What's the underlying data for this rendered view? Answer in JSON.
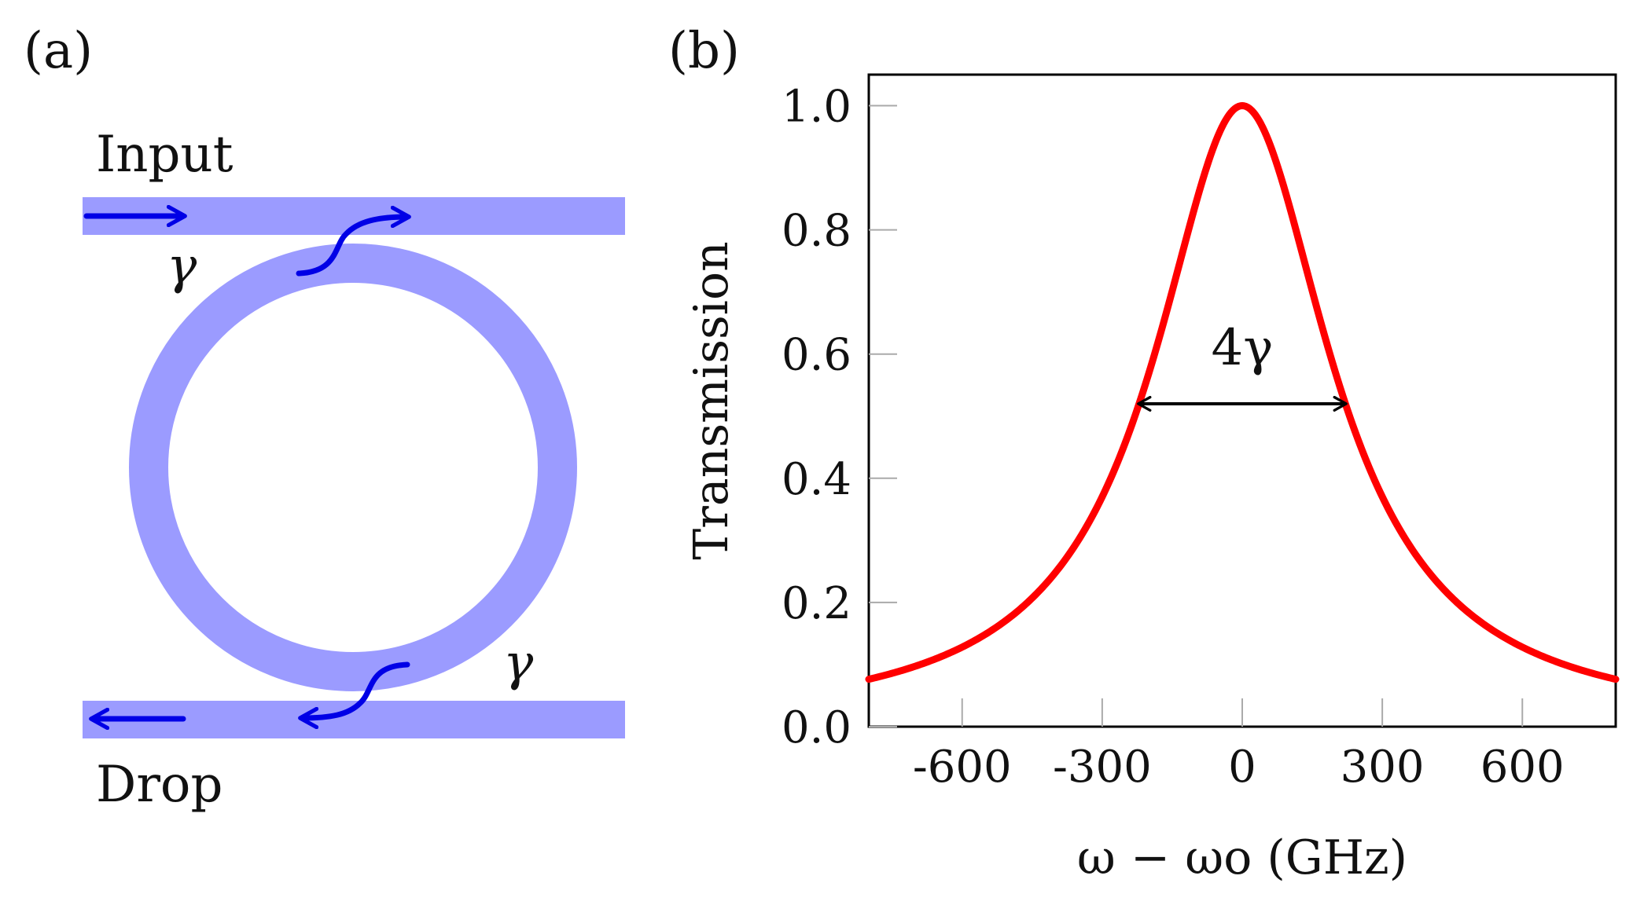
{
  "panel_a": {
    "label": "(a)",
    "input_label": "Input",
    "drop_label": "Drop",
    "coupling_top": "γ",
    "coupling_bottom": "γ"
  },
  "panel_b": {
    "label": "(b)",
    "fwhm_label": "4γ"
  },
  "colors": {
    "waveguide": "#9b9bff",
    "flow_arrow": "#0000e6",
    "curve": "#ff0000",
    "axis": "#000000"
  },
  "chart_data": {
    "type": "line",
    "title": "",
    "xlabel": "ω − ωo (GHz)",
    "ylabel": "Transmission",
    "xlim": [
      -800,
      800
    ],
    "ylim": [
      0,
      1.05
    ],
    "xticks": [
      -600,
      -300,
      0,
      300,
      600
    ],
    "xtick_labels": [
      "-600",
      "-300",
      "0",
      "300",
      "600"
    ],
    "yticks": [
      0,
      0.2,
      0.4,
      0.6,
      0.8,
      1.0
    ],
    "ytick_labels": [
      "0.0",
      "0.2",
      "0.4",
      "0.6",
      "0.8",
      "1.0"
    ],
    "grid": false,
    "series": [
      {
        "name": "Transmission",
        "function": "lorentzian",
        "center": 0,
        "half_width_at_half_max": 230,
        "peak": 1.0,
        "x": [
          -800,
          -600,
          -400,
          -300,
          -230,
          -150,
          -100,
          0,
          100,
          150,
          230,
          300,
          400,
          600,
          800
        ],
        "values": [
          0.076,
          0.128,
          0.249,
          0.37,
          0.5,
          0.702,
          0.841,
          1.0,
          0.841,
          0.702,
          0.5,
          0.37,
          0.249,
          0.128,
          0.076
        ]
      }
    ],
    "annotations": [
      {
        "text": "4γ",
        "x_from": -230,
        "x_to": 230,
        "y": 0.5,
        "style": "double-arrow"
      }
    ]
  }
}
